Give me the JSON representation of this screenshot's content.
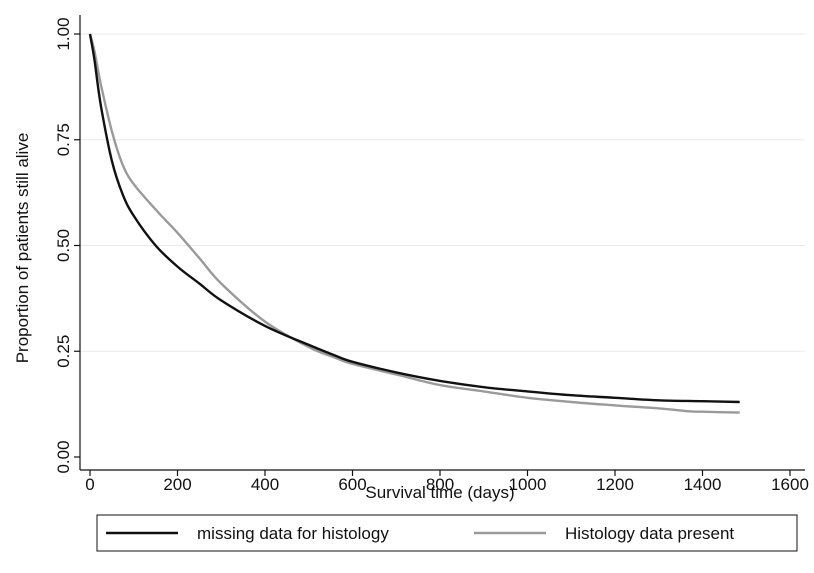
{
  "chart_data": {
    "type": "line",
    "title": "",
    "xlabel": "Survival time (days)",
    "ylabel": "Proportion of patients still alive",
    "xlim": [
      0,
      1600
    ],
    "ylim": [
      0,
      1
    ],
    "x_ticks": [
      0,
      200,
      400,
      600,
      800,
      1000,
      1200,
      1400,
      1600
    ],
    "x_tick_labels": [
      "0",
      "200",
      "400",
      "600",
      "800",
      "1000",
      "1200",
      "1400",
      "1600"
    ],
    "y_ticks": [
      0,
      0.25,
      0.5,
      0.75,
      1
    ],
    "y_tick_labels": [
      "0.00",
      "0.25",
      "0.50",
      "0.75",
      "1.00"
    ],
    "grid": "horizontal",
    "legend_position": "bottom",
    "series": [
      {
        "name": "missing data for histology",
        "color": "#111111",
        "x": [
          0,
          10,
          25,
          50,
          75,
          100,
          150,
          200,
          250,
          300,
          400,
          500,
          560,
          600,
          700,
          800,
          900,
          1000,
          1100,
          1200,
          1300,
          1400,
          1485
        ],
        "y": [
          1.0,
          0.94,
          0.83,
          0.7,
          0.62,
          0.57,
          0.5,
          0.45,
          0.41,
          0.37,
          0.31,
          0.265,
          0.24,
          0.225,
          0.2,
          0.18,
          0.165,
          0.155,
          0.146,
          0.14,
          0.134,
          0.132,
          0.13
        ]
      },
      {
        "name": "Histology data present",
        "color": "#9a9a9a",
        "x": [
          0,
          10,
          25,
          50,
          75,
          100,
          150,
          200,
          250,
          300,
          400,
          500,
          560,
          600,
          700,
          800,
          900,
          1000,
          1100,
          1200,
          1300,
          1370,
          1400,
          1485
        ],
        "y": [
          1.0,
          0.96,
          0.88,
          0.77,
          0.69,
          0.645,
          0.585,
          0.53,
          0.47,
          0.41,
          0.32,
          0.26,
          0.235,
          0.22,
          0.195,
          0.17,
          0.155,
          0.14,
          0.13,
          0.122,
          0.115,
          0.108,
          0.107,
          0.105
        ]
      }
    ]
  }
}
